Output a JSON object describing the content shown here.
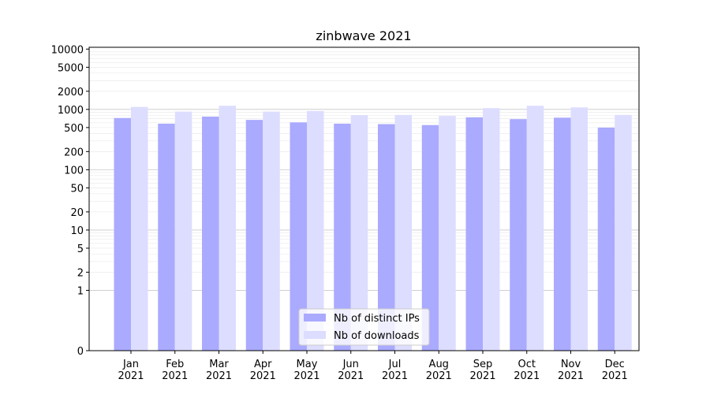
{
  "chart_data": {
    "type": "bar",
    "title": "zinbwave 2021",
    "xlabel": "",
    "ylabel": "",
    "yscale": "symlog",
    "ylim": [
      0,
      10000
    ],
    "yticks": [
      0,
      1,
      2,
      5,
      10,
      20,
      50,
      100,
      200,
      500,
      1000,
      2000,
      5000,
      10000
    ],
    "grid": true,
    "legend_position": "bottom-center",
    "categories": [
      "Jan\n2021",
      "Feb\n2021",
      "Mar\n2021",
      "Apr\n2021",
      "May\n2021",
      "Jun\n2021",
      "Jul\n2021",
      "Aug\n2021",
      "Sep\n2021",
      "Oct\n2021",
      "Nov\n2021",
      "Dec\n2021"
    ],
    "series": [
      {
        "name": "Nb of distinct IPs",
        "color": "#aaaaff",
        "values": [
          720,
          580,
          760,
          670,
          610,
          580,
          570,
          550,
          740,
          690,
          730,
          500
        ]
      },
      {
        "name": "Nb of downloads",
        "color": "#ddddff",
        "values": [
          1100,
          920,
          1150,
          920,
          940,
          800,
          810,
          780,
          1050,
          1150,
          1080,
          810
        ]
      }
    ]
  }
}
